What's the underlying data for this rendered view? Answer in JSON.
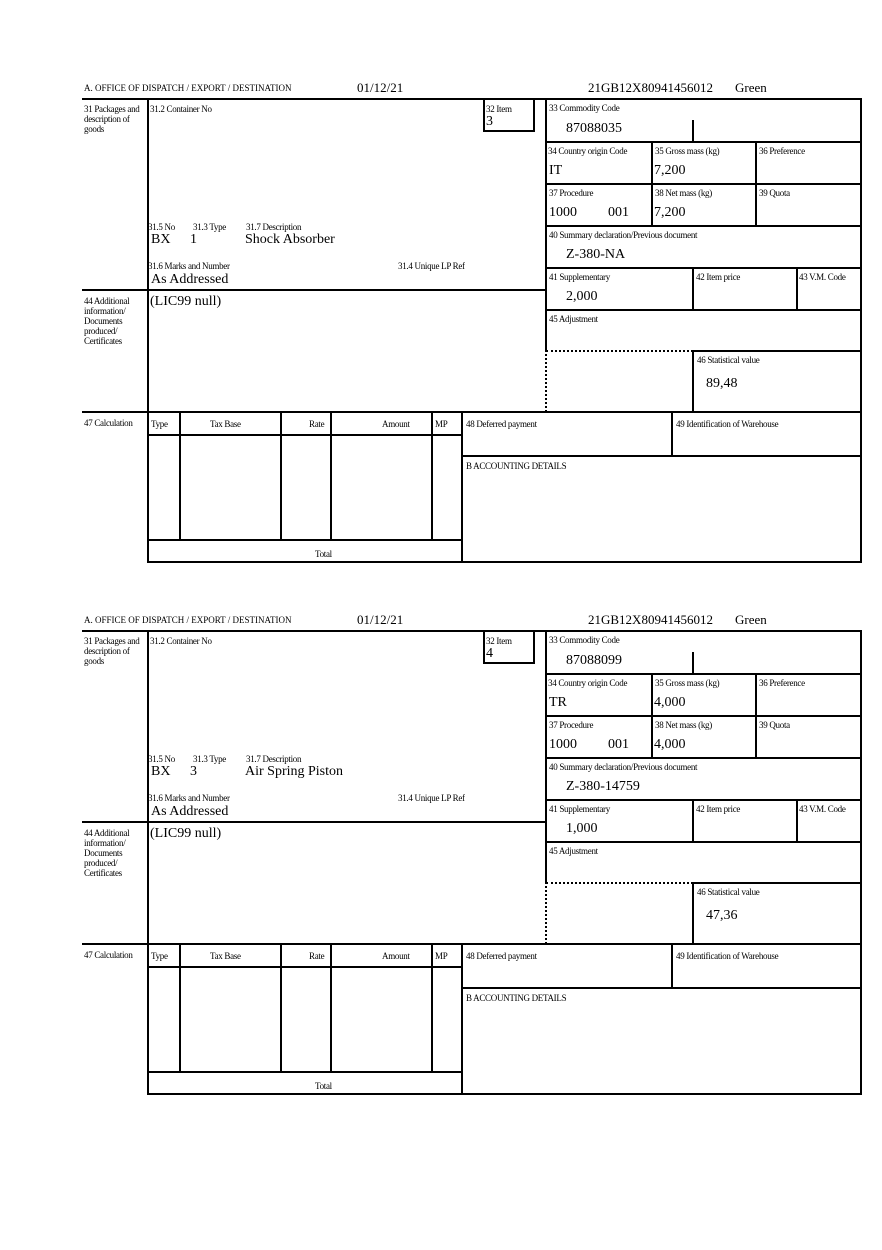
{
  "labels": {
    "office": "A.  OFFICE OF DISPATCH / EXPORT / DESTINATION",
    "packages": "31 Packages and description of goods",
    "container": "31.2 Container No",
    "item": "32 Item",
    "no": "31.5 No",
    "type31": "31.3 Type",
    "description": "31.7 Description",
    "marks": "31.6 Marks and Number",
    "unique_ref": "31.4 Unique LP Ref",
    "commodity": "33 Commodity Code",
    "country": "34 Country origin Code",
    "gross": "35 Gross mass (kg)",
    "preference": "36 Preference",
    "procedure": "37 Procedure",
    "net": "38 Net mass (kg)",
    "quota": "39 Quota",
    "summary": "40 Summary declaration/Previous document",
    "supplementary": "41 Supplementary",
    "item_price": "42 Item price",
    "vm_code": "43 V.M. Code",
    "adjustment": "45 Adjustment",
    "statistical": "46 Statistical value",
    "additional": "44 Additional information/ Documents produced/ Certificates",
    "calculation": "47 Calculation",
    "col_type": "Type",
    "col_tax_base": "Tax Base",
    "col_rate": "Rate",
    "col_amount": "Amount",
    "col_mp": "MP",
    "deferred": "48 Deferred payment",
    "warehouse": "49 Identification of Warehouse",
    "accounting": "B ACCOUNTING DETAILS",
    "total": "Total"
  },
  "forms": [
    {
      "date": "01/12/21",
      "reference": "21GB12X80941456012",
      "route": "Green",
      "item": "3",
      "no": "BX",
      "type": "1",
      "description": "Shock Absorber",
      "marks": "As Addressed",
      "additional": "(LIC99 null)",
      "commodity": "87088035",
      "country": "IT",
      "gross": "7,200",
      "procedure": "1000",
      "procedure_add": "001",
      "net": "7,200",
      "summary": "Z-380-NA",
      "supplementary": "2,000",
      "statistical": "89,48"
    },
    {
      "date": "01/12/21",
      "reference": "21GB12X80941456012",
      "route": "Green",
      "item": "4",
      "no": "BX",
      "type": "3",
      "description": "Air Spring Piston",
      "marks": "As Addressed",
      "additional": "(LIC99 null)",
      "commodity": "87088099",
      "country": "TR",
      "gross": "4,000",
      "procedure": "1000",
      "procedure_add": "001",
      "net": "4,000",
      "summary": "Z-380-14759",
      "supplementary": "1,000",
      "statistical": "47,36"
    }
  ]
}
